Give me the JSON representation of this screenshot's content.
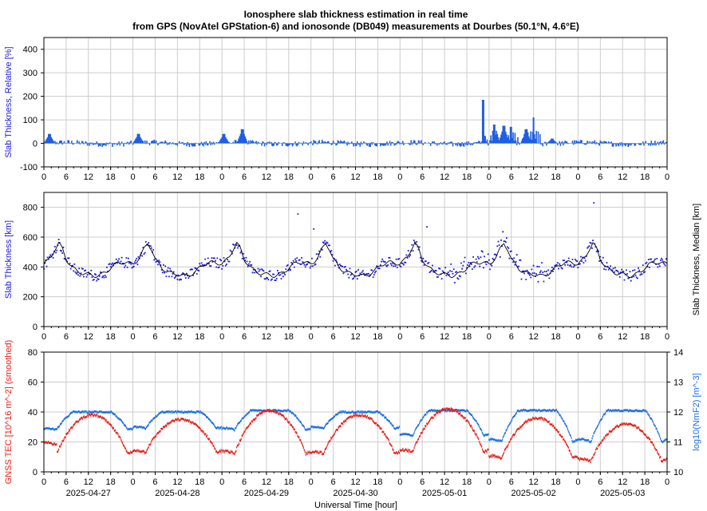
{
  "title_line1": "Ionosphere slab thickness estimation in real time",
  "title_line2": "from GPS (NovAtel GPStation-6) and ionosonde (DB049) measurements at Dourbes (50.1°N, 4.6°E)",
  "hour_ticks": [
    "0",
    "6",
    "12",
    "18",
    "0",
    "6",
    "12",
    "18",
    "0",
    "6",
    "12",
    "18",
    "0",
    "6",
    "12",
    "18",
    "0",
    "6",
    "12",
    "18",
    "0",
    "6",
    "12",
    "18",
    "0",
    "6",
    "12",
    "18",
    "0"
  ],
  "dates": [
    "2025-04-27",
    "2025-04-28",
    "2025-04-29",
    "2025-04-30",
    "2025-05-01",
    "2025-05-02",
    "2025-05-03"
  ],
  "xlabel": "Universal Time [hour]",
  "colors": {
    "blue": "#1f5fe0",
    "dots": "#1a1ad8",
    "red": "#e8201a",
    "tec_blue": "#1f6fe0",
    "black": "#000000"
  },
  "chart_data": [
    {
      "type": "bar",
      "ylabel": "Slab Thickness, Relative [%]",
      "ylim": [
        -100,
        450
      ],
      "yticks": [
        "-100",
        "0",
        "100",
        "200",
        "300",
        "400"
      ],
      "x_range_hours": [
        0,
        168
      ],
      "spikes": [
        {
          "x_hours": 1.5,
          "value": 40
        },
        {
          "x_hours": 25.5,
          "value": 40
        },
        {
          "x_hours": 48.5,
          "value": 40
        },
        {
          "x_hours": 53.5,
          "value": 60
        },
        {
          "x_hours": 118.5,
          "value": 185
        },
        {
          "x_hours": 121.5,
          "value": 80
        },
        {
          "x_hours": 124,
          "value": 75
        },
        {
          "x_hours": 126,
          "value": 70
        },
        {
          "x_hours": 130,
          "value": 60
        },
        {
          "x_hours": 132,
          "value": 110
        },
        {
          "x_hours": 137,
          "value": 20
        }
      ]
    },
    {
      "type": "line+scatter",
      "ylabel": "Slab Thickness [km]",
      "ylabel_right": "Slab Thickness, Median [km]",
      "ylim": [
        0,
        900
      ],
      "yticks": [
        "0",
        "200",
        "400",
        "600",
        "800"
      ],
      "median_daily_profile_km": [
        420,
        440,
        470,
        520,
        560,
        520,
        450,
        420,
        390,
        370,
        360,
        355,
        350,
        345,
        340,
        345,
        355,
        370,
        395,
        415,
        425,
        430,
        430,
        425
      ],
      "series": [
        {
          "name": "Slab Thickness [km]",
          "style": "scatter"
        },
        {
          "name": "Slab Thickness, Median [km]",
          "style": "line"
        }
      ]
    },
    {
      "type": "line",
      "ylabel": "GNSS TEC [10^16 m^-2] (smoothed)",
      "ylabel_right": "log10(NmF2) [m^-3]",
      "ylim": [
        0,
        80
      ],
      "ylim_right": [
        10,
        14
      ],
      "yticks": [
        "0",
        "20",
        "40",
        "60",
        "80"
      ],
      "yticks_right": [
        "10",
        "11",
        "12",
        "13",
        "14"
      ],
      "tec_daily_min": [
        12,
        13,
        12,
        12,
        13,
        9,
        7
      ],
      "tec_daily_max": [
        38,
        35,
        41,
        38,
        42,
        36,
        32
      ],
      "nmf2_daily_min": [
        11.4,
        11.45,
        11.4,
        11.45,
        11.2,
        11.0,
        11.0
      ],
      "nmf2_daily_max": [
        12.0,
        12.0,
        12.05,
        12.0,
        12.05,
        12.05,
        12.05
      ],
      "series": [
        {
          "name": "GNSS TEC [10^16 m^-2] (smoothed)",
          "color": "#e8201a"
        },
        {
          "name": "log10(NmF2) [m^-3]",
          "color": "#1f6fe0"
        }
      ]
    }
  ]
}
